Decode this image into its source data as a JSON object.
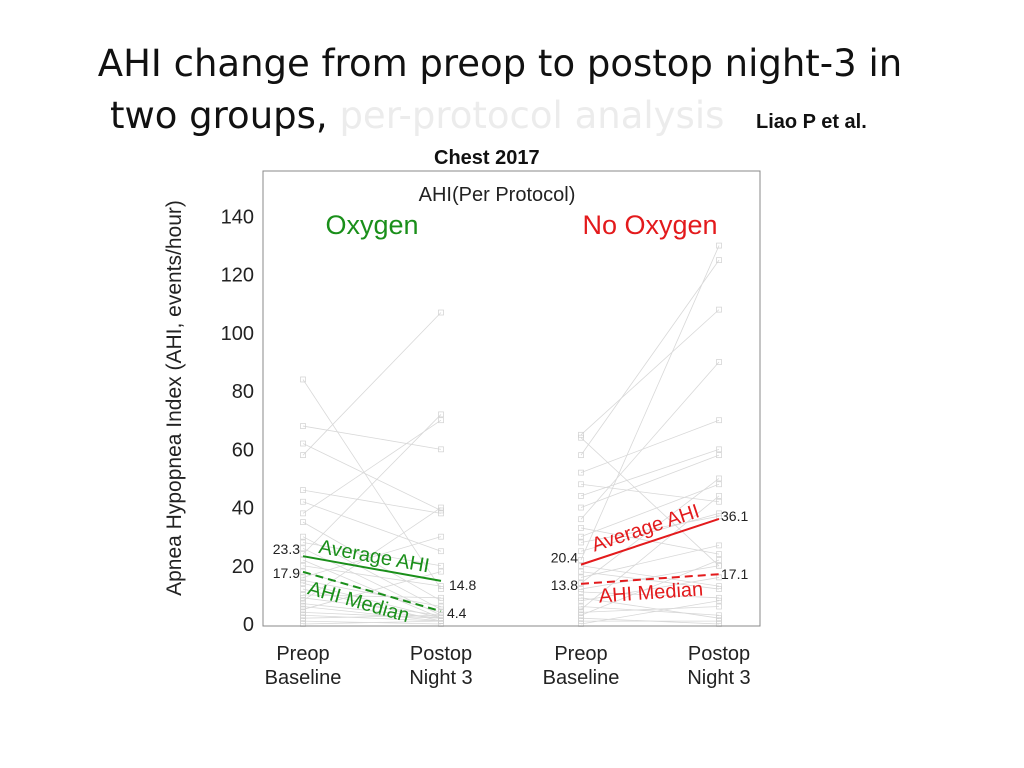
{
  "slide": {
    "title_line1": "AHI change from preop to postop night-3 in",
    "title_line2_main": "two groups,",
    "title_line2_faded": "per-protocol analysis",
    "citation_author": "Liao P et al.",
    "citation_journal": "Chest 2017"
  },
  "chart_data": {
    "type": "line",
    "title": "AHI(Per Protocol)",
    "ylabel": "Apnea Hypopnea Index (AHI, events/hour)",
    "ylim": [
      0,
      155
    ],
    "yticks": [
      0,
      20,
      40,
      60,
      80,
      100,
      120,
      140
    ],
    "x_ticklabels": [
      {
        "line1": "Preop",
        "line2": "Baseline"
      },
      {
        "line1": "Postop",
        "line2": "Night 3"
      },
      {
        "line1": "Preop",
        "line2": "Baseline"
      },
      {
        "line1": "Postop",
        "line2": "Night 3"
      }
    ],
    "groups": [
      {
        "name": "Oxygen",
        "color": "#1a8f1a",
        "average": {
          "label": "Average AHI",
          "preop": 23.3,
          "postop": 14.8
        },
        "median": {
          "label": "AHI Median",
          "preop": 17.9,
          "postop": 4.4
        },
        "value_labels": {
          "avg_pre": "23.3",
          "med_pre": "17.9",
          "avg_post": "14.8",
          "med_post": "4.4"
        }
      },
      {
        "name": "No Oxygen",
        "color": "#e31a1c",
        "average": {
          "label": "Average AHI",
          "preop": 20.4,
          "postop": 36.1
        },
        "median": {
          "label": "AHI Median",
          "preop": 13.8,
          "postop": 17.1
        },
        "value_labels": {
          "avg_pre": "20.4",
          "med_pre": "13.8",
          "avg_post": "36.1",
          "med_post": "17.1"
        }
      }
    ],
    "individual_patients": {
      "color": "#d8d8d8",
      "oxygen": [
        [
          84,
          12
        ],
        [
          68,
          60
        ],
        [
          62,
          39
        ],
        [
          58,
          107
        ],
        [
          46,
          38
        ],
        [
          42,
          25
        ],
        [
          38,
          70
        ],
        [
          35,
          8
        ],
        [
          30,
          5
        ],
        [
          28,
          20
        ],
        [
          26,
          3
        ],
        [
          24,
          72
        ],
        [
          22,
          2
        ],
        [
          20,
          13
        ],
        [
          18,
          4
        ],
        [
          16,
          30
        ],
        [
          15,
          6
        ],
        [
          14,
          2
        ],
        [
          12,
          1
        ],
        [
          10,
          9
        ],
        [
          9,
          3
        ],
        [
          8,
          40
        ],
        [
          7,
          2
        ],
        [
          6,
          1
        ],
        [
          5,
          18
        ],
        [
          4,
          2
        ],
        [
          3,
          1
        ],
        [
          2,
          3
        ],
        [
          1,
          0
        ],
        [
          0,
          1
        ]
      ],
      "no_oxygen": [
        [
          65,
          108
        ],
        [
          64,
          20
        ],
        [
          58,
          125
        ],
        [
          52,
          70
        ],
        [
          48,
          42
        ],
        [
          44,
          60
        ],
        [
          40,
          58
        ],
        [
          36,
          90
        ],
        [
          33,
          24
        ],
        [
          30,
          48
        ],
        [
          28,
          37
        ],
        [
          25,
          38
        ],
        [
          22,
          130
        ],
        [
          20,
          13
        ],
        [
          18,
          12
        ],
        [
          16,
          27
        ],
        [
          14,
          50
        ],
        [
          12,
          20
        ],
        [
          11,
          9
        ],
        [
          9,
          2
        ],
        [
          8,
          16
        ],
        [
          6,
          3
        ],
        [
          5,
          44
        ],
        [
          4,
          6
        ],
        [
          3,
          22
        ],
        [
          2,
          0
        ],
        [
          1,
          1
        ],
        [
          0,
          8
        ]
      ]
    }
  }
}
